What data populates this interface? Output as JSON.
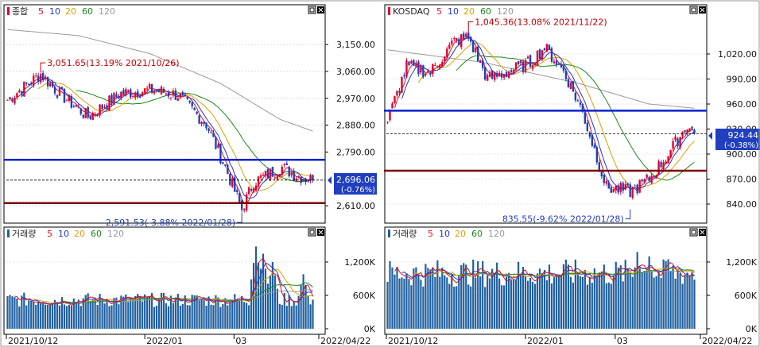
{
  "colors": {
    "up": "#e4002b",
    "down": "#1f3fbf",
    "ma5": "#d9141e",
    "ma10": "#2338c8",
    "ma20": "#e0a000",
    "ma60": "#1a8a1a",
    "ma120": "#9a9a9a",
    "hline_blue": "#0a20d0",
    "hline_red": "#7a0000",
    "volume_bar": "#1f5f9f",
    "grid": "#c9c9c9"
  },
  "chart_data": [
    {
      "type": "candlestick",
      "panel": "kospi-price",
      "legend": {
        "title": "종합",
        "ma": [
          "5",
          "10",
          "20",
          "60",
          "120"
        ]
      },
      "ylim": [
        2560,
        3230
      ],
      "yticks": [
        {
          "value": 3150,
          "label": "3,150.00"
        },
        {
          "value": 3060,
          "label": "3,060.00"
        },
        {
          "value": 2970,
          "label": "2,970.00"
        },
        {
          "value": 2880,
          "label": "2,880.00"
        },
        {
          "value": 2790,
          "label": "2,790.00"
        },
        {
          "value": 2610,
          "label": "2,610.00"
        }
      ],
      "current": {
        "value": 2696.06,
        "label": "2,696.06",
        "change": "(-0.76%)"
      },
      "high_note": {
        "value": 3051.65,
        "text": "3,051.65(13.19% 2021/10/26)"
      },
      "low_note": {
        "value": 2591.53,
        "text": "2,591.53(-3.88% 2022/01/28)"
      },
      "hlines": [
        2764,
        2619
      ],
      "current_line": 2696.06,
      "n": 130,
      "keypoints": [
        [
          0,
          2965
        ],
        [
          14,
          3051
        ],
        [
          22,
          2985
        ],
        [
          34,
          2908
        ],
        [
          48,
          2987
        ],
        [
          62,
          2998
        ],
        [
          72,
          2980
        ],
        [
          84,
          2883
        ],
        [
          92,
          2740
        ],
        [
          99,
          2598
        ],
        [
          104,
          2690
        ],
        [
          116,
          2739
        ],
        [
          122,
          2712
        ],
        [
          129,
          2696
        ]
      ],
      "ma120_points": [
        [
          0,
          3200
        ],
        [
          30,
          3180
        ],
        [
          60,
          3120
        ],
        [
          90,
          3020
        ],
        [
          115,
          2900
        ],
        [
          129,
          2860
        ]
      ]
    },
    {
      "type": "bar",
      "panel": "kospi-volume",
      "legend": {
        "title": "거래량",
        "ma": [
          "5",
          "10",
          "20",
          "60",
          "120"
        ]
      },
      "ylim": [
        0,
        1600
      ],
      "yticks": [
        {
          "value": 1200,
          "label": "1,200K"
        },
        {
          "value": 600,
          "label": "600K"
        },
        {
          "value": 0,
          "label": "0K"
        }
      ],
      "n": 130,
      "base": 520,
      "spikes": [
        [
          105,
          1480
        ],
        [
          108,
          1350
        ],
        [
          112,
          1200
        ],
        [
          125,
          980
        ]
      ],
      "x_labels": [
        "2021/10/12",
        "2022/01",
        "03",
        "2022/04/22"
      ]
    },
    {
      "type": "candlestick",
      "panel": "kosdaq-price",
      "legend": {
        "title": "KOSDAQ",
        "ma": [
          "5",
          "10",
          "20",
          "60",
          "120"
        ]
      },
      "ylim": [
        820,
        1060
      ],
      "yticks": [
        {
          "value": 1020,
          "label": "1,020.00"
        },
        {
          "value": 990,
          "label": "990.00"
        },
        {
          "value": 960,
          "label": "960.00"
        },
        {
          "value": 930,
          "label": "930.00"
        },
        {
          "value": 900,
          "label": "900.00"
        },
        {
          "value": 870,
          "label": "870.00"
        },
        {
          "value": 840,
          "label": "840.00"
        }
      ],
      "current": {
        "value": 924.44,
        "label": "924.44",
        "change": "(-0.38%)"
      },
      "high_note": {
        "value": 1045.36,
        "text": "1,045.36(13.08% 2021/11/22)"
      },
      "low_note": {
        "value": 835.55,
        "text": "835.55(-9.62% 2022/01/28)"
      },
      "hlines": [
        952,
        880
      ],
      "current_line": 924.44,
      "n": 130,
      "keypoints": [
        [
          0,
          940
        ],
        [
          8,
          1005
        ],
        [
          18,
          998
        ],
        [
          28,
          1035
        ],
        [
          34,
          1040
        ],
        [
          42,
          990
        ],
        [
          52,
          1000
        ],
        [
          60,
          1010
        ],
        [
          66,
          1028
        ],
        [
          74,
          1000
        ],
        [
          82,
          950
        ],
        [
          92,
          860
        ],
        [
          102,
          855
        ],
        [
          110,
          870
        ],
        [
          118,
          900
        ],
        [
          126,
          935
        ],
        [
          129,
          924
        ]
      ],
      "ma120_points": [
        [
          0,
          1025
        ],
        [
          40,
          1010
        ],
        [
          80,
          985
        ],
        [
          110,
          960
        ],
        [
          129,
          955
        ]
      ]
    },
    {
      "type": "bar",
      "panel": "kosdaq-volume",
      "legend": {
        "title": "거래량",
        "ma": [
          "5",
          "10",
          "20",
          "60",
          "120"
        ]
      },
      "ylim": [
        0,
        1600
      ],
      "yticks": [
        {
          "value": 1200,
          "label": "1,200K"
        },
        {
          "value": 600,
          "label": "600K"
        },
        {
          "value": 0,
          "label": "0K"
        }
      ],
      "n": 130,
      "base": 1000,
      "spikes": [
        [
          105,
          1380
        ],
        [
          110,
          1300
        ],
        [
          118,
          1250
        ]
      ],
      "x_labels": [
        "2021/10/12",
        "2022/01",
        "03",
        "2022/04/22"
      ]
    }
  ]
}
